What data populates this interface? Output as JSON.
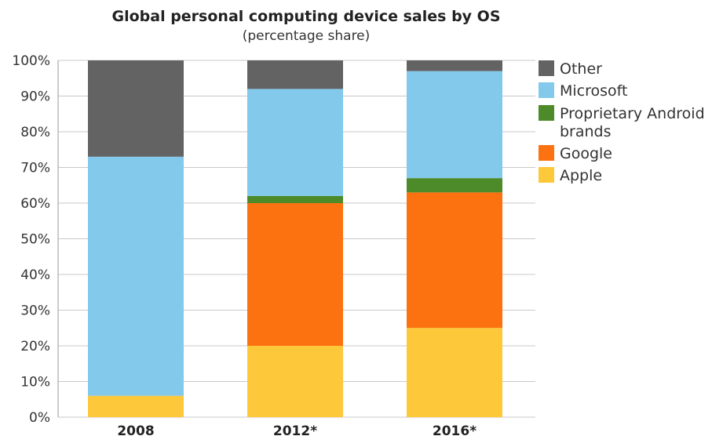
{
  "chart_data": {
    "type": "bar",
    "stacked": true,
    "title": "Global personal computing device sales by OS",
    "subtitle": "(percentage share)",
    "categories": [
      "2008",
      "2012*",
      "2016*"
    ],
    "ylim": [
      0,
      100
    ],
    "yticks": [
      "0%",
      "10%",
      "20%",
      "30%",
      "40%",
      "50%",
      "60%",
      "70%",
      "80%",
      "90%",
      "100%"
    ],
    "grid": true,
    "legend_position": "right",
    "series": [
      {
        "name": "Apple",
        "color": "#fdc93b",
        "values": [
          6,
          20,
          25
        ]
      },
      {
        "name": "Google",
        "color": "#fc7110",
        "values": [
          0,
          40,
          38
        ]
      },
      {
        "name": "Proprietary Android brands",
        "legend_lines": [
          "Proprietary Android",
          "brands"
        ],
        "color": "#4d8a2a",
        "values": [
          0,
          2,
          4
        ]
      },
      {
        "name": "Microsoft",
        "color": "#82c9ec",
        "values": [
          67,
          30,
          30
        ]
      },
      {
        "name": "Other",
        "color": "#636363",
        "values": [
          27,
          8,
          3
        ]
      }
    ]
  }
}
